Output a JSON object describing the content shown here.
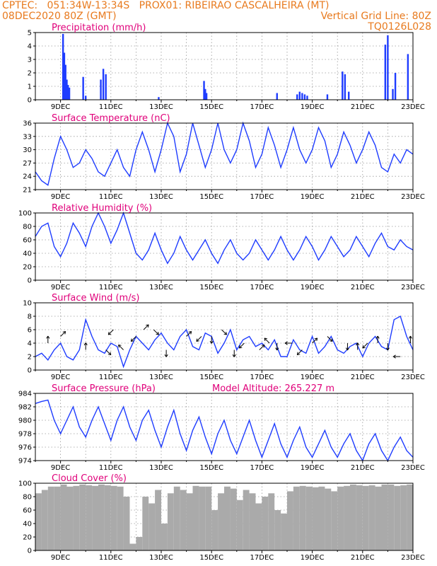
{
  "header": {
    "line1": "CPTEC:   051:34W-13:34S   PROX01: RIBEIRAO CASCALHEIRA (MT)",
    "line2_left": "08DEC2020 80Z (GMT)",
    "line2_right": "Vertical Grid Line: 80Z",
    "line3_right": "TQ0126L028"
  },
  "model_altitude": "Model Altitude: 265.227 m",
  "colors": {
    "header": "#e87a1e",
    "title": "#e0007a",
    "series": "#1e3cff",
    "cloud": "#aaaaaa"
  },
  "chart_data": [
    {
      "type": "bar",
      "title": "Precipitation (mm/h)",
      "x_categories": [
        "9DEC",
        "11DEC",
        "13DEC",
        "15DEC",
        "17DEC",
        "19DEC",
        "21DEC",
        "23DEC"
      ],
      "ylim": [
        0,
        5
      ],
      "yticks": [
        0,
        1,
        2,
        3,
        4,
        5
      ],
      "x": [
        1.1,
        1.15,
        1.2,
        1.25,
        1.3,
        1.35,
        1.9,
        2.0,
        2.6,
        2.7,
        2.8,
        4.9,
        6.7,
        6.75,
        6.8,
        9.6,
        10.4,
        10.5,
        10.6,
        10.7,
        10.8,
        11.6,
        12.2,
        12.3,
        12.45,
        13.9,
        14.0,
        14.2,
        14.3,
        14.8
      ],
      "values": [
        4.9,
        3.5,
        2.6,
        1.5,
        1.1,
        0.9,
        1.7,
        0.3,
        1.5,
        2.3,
        1.9,
        0.2,
        1.4,
        0.8,
        0.5,
        0.5,
        0.4,
        0.6,
        0.5,
        0.4,
        0.3,
        0.4,
        2.1,
        1.9,
        0.6,
        4.1,
        4.8,
        0.8,
        2.0,
        3.4
      ]
    },
    {
      "type": "line",
      "title": "Surface Temperature (nC)",
      "x_categories": [
        "9DEC",
        "11DEC",
        "13DEC",
        "15DEC",
        "17DEC",
        "19DEC",
        "21DEC",
        "23DEC"
      ],
      "ylim": [
        21,
        36
      ],
      "yticks": [
        21,
        24,
        27,
        30,
        33,
        36
      ],
      "x": [
        0,
        0.25,
        0.5,
        0.75,
        1,
        1.25,
        1.5,
        1.75,
        2,
        2.25,
        2.5,
        2.75,
        3,
        3.25,
        3.5,
        3.75,
        4,
        4.25,
        4.5,
        4.75,
        5,
        5.25,
        5.5,
        5.75,
        6,
        6.25,
        6.5,
        6.75,
        7,
        7.25,
        7.5,
        7.75,
        8,
        8.25,
        8.5,
        8.75,
        9,
        9.25,
        9.5,
        9.75,
        10,
        10.25,
        10.5,
        10.75,
        11,
        11.25,
        11.5,
        11.75,
        12,
        12.25,
        12.5,
        12.75,
        13,
        13.25,
        13.5,
        13.75,
        14,
        14.25,
        14.5,
        14.75,
        15
      ],
      "values": [
        25,
        23,
        22,
        28,
        33,
        30,
        26,
        27,
        30,
        28,
        25,
        24,
        27,
        30,
        26,
        24,
        30,
        34,
        30,
        25,
        30,
        36,
        33,
        25,
        29,
        36,
        31,
        26,
        30,
        36,
        30,
        27,
        30,
        36,
        32,
        26,
        29,
        35,
        31,
        26,
        30,
        35,
        30,
        27,
        30,
        35,
        32,
        26,
        29,
        34,
        31,
        27,
        30,
        34,
        31,
        26,
        25,
        29,
        27,
        30,
        29
      ]
    },
    {
      "type": "line",
      "title": "Relative Humidity (%)",
      "x_categories": [
        "9DEC",
        "11DEC",
        "13DEC",
        "15DEC",
        "17DEC",
        "19DEC",
        "21DEC",
        "23DEC"
      ],
      "ylim": [
        0,
        100
      ],
      "yticks": [
        0,
        20,
        40,
        60,
        80,
        100
      ],
      "x": [
        0,
        0.25,
        0.5,
        0.75,
        1,
        1.25,
        1.5,
        1.75,
        2,
        2.25,
        2.5,
        2.75,
        3,
        3.25,
        3.5,
        3.75,
        4,
        4.25,
        4.5,
        4.75,
        5,
        5.25,
        5.5,
        5.75,
        6,
        6.25,
        6.5,
        6.75,
        7,
        7.25,
        7.5,
        7.75,
        8,
        8.25,
        8.5,
        8.75,
        9,
        9.25,
        9.5,
        9.75,
        10,
        10.25,
        10.5,
        10.75,
        11,
        11.25,
        11.5,
        11.75,
        12,
        12.25,
        12.5,
        12.75,
        13,
        13.25,
        13.5,
        13.75,
        14,
        14.25,
        14.5,
        14.75,
        15
      ],
      "values": [
        65,
        80,
        85,
        50,
        35,
        55,
        85,
        70,
        50,
        80,
        100,
        80,
        55,
        75,
        100,
        70,
        40,
        30,
        45,
        70,
        45,
        25,
        40,
        65,
        45,
        30,
        45,
        60,
        40,
        25,
        45,
        60,
        40,
        30,
        40,
        60,
        45,
        30,
        45,
        65,
        45,
        30,
        45,
        65,
        50,
        30,
        45,
        65,
        50,
        35,
        45,
        65,
        50,
        35,
        55,
        70,
        50,
        45,
        60,
        50,
        45
      ]
    },
    {
      "type": "line",
      "title": "Surface Wind (m/s)",
      "x_categories": [
        "9DEC",
        "11DEC",
        "13DEC",
        "15DEC",
        "17DEC",
        "19DEC",
        "21DEC",
        "23DEC"
      ],
      "ylim": [
        0,
        10
      ],
      "yticks": [
        0,
        2,
        4,
        6,
        8,
        10
      ],
      "x": [
        0,
        0.25,
        0.5,
        0.75,
        1,
        1.25,
        1.5,
        1.75,
        2,
        2.25,
        2.5,
        2.75,
        3,
        3.25,
        3.5,
        3.75,
        4,
        4.25,
        4.5,
        4.75,
        5,
        5.25,
        5.5,
        5.75,
        6,
        6.25,
        6.5,
        6.75,
        7,
        7.25,
        7.5,
        7.75,
        8,
        8.25,
        8.5,
        8.75,
        9,
        9.25,
        9.5,
        9.75,
        10,
        10.25,
        10.5,
        10.75,
        11,
        11.25,
        11.5,
        11.75,
        12,
        12.25,
        12.5,
        12.75,
        13,
        13.25,
        13.5,
        13.75,
        14,
        14.25,
        14.5,
        14.75,
        15
      ],
      "values": [
        2,
        2.5,
        1.5,
        3,
        4,
        2,
        1.5,
        3,
        7.5,
        5,
        3,
        2.5,
        4,
        3.5,
        0.5,
        3,
        5,
        4,
        3,
        4.5,
        5.5,
        4,
        3,
        5,
        6,
        3.5,
        3,
        5.5,
        5,
        2.5,
        4,
        6,
        3,
        4.5,
        5,
        3.5,
        4,
        3,
        4.5,
        2,
        2,
        4.5,
        3,
        2.5,
        5,
        2.5,
        3.5,
        5,
        3,
        2.5,
        3.5,
        4,
        2,
        4,
        5,
        3.5,
        3,
        7.5,
        8,
        5,
        3
      ]
    },
    {
      "type": "line",
      "title": "Surface Pressure (hPa)",
      "x_categories": [
        "9DEC",
        "11DEC",
        "13DEC",
        "15DEC",
        "17DEC",
        "19DEC",
        "21DEC",
        "23DEC"
      ],
      "ylim": [
        974,
        984
      ],
      "yticks": [
        974,
        976,
        978,
        980,
        982,
        984
      ],
      "x": [
        0,
        0.25,
        0.5,
        0.75,
        1,
        1.25,
        1.5,
        1.75,
        2,
        2.25,
        2.5,
        2.75,
        3,
        3.25,
        3.5,
        3.75,
        4,
        4.25,
        4.5,
        4.75,
        5,
        5.25,
        5.5,
        5.75,
        6,
        6.25,
        6.5,
        6.75,
        7,
        7.25,
        7.5,
        7.75,
        8,
        8.25,
        8.5,
        8.75,
        9,
        9.25,
        9.5,
        9.75,
        10,
        10.25,
        10.5,
        10.75,
        11,
        11.25,
        11.5,
        11.75,
        12,
        12.25,
        12.5,
        12.75,
        13,
        13.25,
        13.5,
        13.75,
        14,
        14.25,
        14.5,
        14.75,
        15
      ],
      "values": [
        982.5,
        982.8,
        983,
        980,
        978,
        980,
        982,
        979,
        977.5,
        980,
        982,
        979.5,
        977,
        980,
        982,
        979,
        977,
        980,
        981.5,
        978.5,
        976,
        979,
        981.5,
        978,
        975.5,
        978.5,
        980.5,
        977.5,
        975,
        978,
        980,
        977,
        975,
        977.5,
        980,
        977,
        974.5,
        977,
        979.5,
        976.5,
        974.5,
        977,
        979,
        976,
        974.5,
        976.5,
        978.5,
        976,
        974.5,
        976.5,
        978,
        975.5,
        974,
        976.5,
        978,
        975.5,
        974,
        976,
        977.5,
        975.5,
        974.5
      ]
    },
    {
      "type": "bar",
      "title": "Cloud Cover (%)",
      "x_categories": [
        "9DEC",
        "11DEC",
        "13DEC",
        "15DEC",
        "17DEC",
        "19DEC",
        "21DEC",
        "23DEC"
      ],
      "ylim": [
        0,
        100
      ],
      "yticks": [
        0,
        20,
        40,
        60,
        80,
        100
      ],
      "x": [
        0.25,
        0.5,
        0.75,
        1,
        1.25,
        1.5,
        1.75,
        2,
        2.25,
        2.5,
        2.75,
        3,
        3.25,
        3.5,
        3.75,
        4,
        4.25,
        4.5,
        4.75,
        5,
        5.25,
        5.5,
        5.75,
        6,
        6.25,
        6.5,
        6.75,
        7,
        7.25,
        7.5,
        7.75,
        8,
        8.25,
        8.5,
        8.75,
        9,
        9.25,
        9.5,
        9.75,
        10,
        10.25,
        10.5,
        10.75,
        11,
        11.25,
        11.5,
        11.75,
        12,
        12.25,
        12.5,
        12.75,
        13,
        13.25,
        13.5,
        13.75,
        14,
        14.25,
        14.5,
        14.75,
        15
      ],
      "values": [
        85,
        90,
        95,
        95,
        98,
        95,
        96,
        98,
        97,
        96,
        98,
        97,
        96,
        95,
        80,
        10,
        20,
        80,
        70,
        90,
        40,
        85,
        95,
        90,
        85,
        96,
        95,
        95,
        60,
        85,
        95,
        92,
        75,
        90,
        85,
        70,
        80,
        85,
        60,
        55,
        88,
        95,
        96,
        95,
        94,
        95,
        92,
        88,
        95,
        96,
        98,
        97,
        96,
        97,
        95,
        98,
        98,
        96,
        97,
        98
      ]
    }
  ],
  "wind_arrows": {
    "x": [
      0.5,
      1.0,
      2.0,
      2.8,
      3.1,
      3.5,
      4.0,
      4.3,
      4.7,
      5.2,
      6.0,
      6.6,
      7.0,
      7.4,
      7.9,
      8.3,
      8.9,
      9.3,
      9.6,
      10.2,
      10.6,
      11.0,
      11.6,
      12.4,
      12.8,
      13.2,
      13.6,
      14.0,
      14.5,
      14.9
    ],
    "speed": [
      4,
      5,
      3,
      3,
      6,
      3,
      5,
      6,
      6,
      3,
      5,
      5,
      5,
      6,
      3,
      4,
      3,
      4,
      4,
      4,
      3,
      4,
      5,
      4,
      3,
      4,
      4,
      4,
      2,
      4
    ],
    "direction_deg": [
      90,
      45,
      90,
      315,
      225,
      135,
      225,
      45,
      315,
      270,
      45,
      225,
      270,
      315,
      270,
      225,
      45,
      135,
      270,
      180,
      225,
      45,
      315,
      270,
      90,
      225,
      90,
      270,
      180,
      90
    ]
  }
}
